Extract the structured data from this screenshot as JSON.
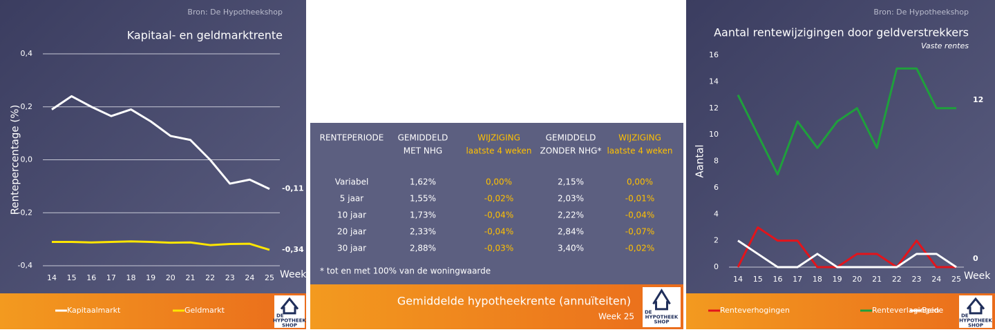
{
  "chart_data": [
    {
      "type": "line",
      "source": "Bron: De Hypotheekshop",
      "title": "Kapitaal- en geldmarktrente",
      "y_label": "Rentepercentage (%)",
      "x_label": "Week",
      "categories": [
        14,
        15,
        16,
        17,
        18,
        19,
        20,
        21,
        22,
        23,
        24,
        25
      ],
      "ylim": [
        -0.4,
        0.4
      ],
      "yticks": [
        {
          "value": -0.4,
          "label": "-0,4"
        },
        {
          "value": -0.2,
          "label": "-0,2"
        },
        {
          "value": 0,
          "label": "0,0"
        },
        {
          "value": 0.2,
          "label": "0,2"
        },
        {
          "value": 0.4,
          "label": "0,4"
        }
      ],
      "grid": true,
      "series": [
        {
          "name": "Kapitaalmarkt",
          "color": "#ffffff",
          "values": [
            0.19,
            0.24,
            0.2,
            0.165,
            0.19,
            0.145,
            0.09,
            0.075,
            0.0,
            -0.09,
            -0.075,
            -0.11
          ],
          "end_label": "-0,11"
        },
        {
          "name": "Geldmarkt",
          "color": "#ffe600",
          "values": [
            -0.31,
            -0.31,
            -0.312,
            -0.31,
            -0.308,
            -0.31,
            -0.313,
            -0.312,
            -0.322,
            -0.318,
            -0.317,
            -0.34
          ],
          "end_label": "-0,34"
        }
      ]
    },
    {
      "type": "line",
      "source": "Bron: De Hypotheekshop",
      "title": "Aantal rentewijzigingen door geldverstrekkers",
      "subtitle": "Vaste rentes",
      "y_label": "Aantal",
      "x_label": "Week",
      "categories": [
        14,
        15,
        16,
        17,
        18,
        19,
        20,
        21,
        22,
        23,
        24,
        25
      ],
      "ylim": [
        0,
        16
      ],
      "yticks": [
        0,
        2,
        4,
        6,
        8,
        10,
        12,
        14,
        16
      ],
      "grid": false,
      "series": [
        {
          "name": "Renteverhogingen",
          "color": "#e3141b",
          "values": [
            0,
            3,
            2,
            2,
            0,
            0,
            1,
            1,
            0,
            2,
            0,
            0
          ]
        },
        {
          "name": "Renteverlagingen",
          "color": "#1fa03c",
          "values": [
            13,
            10,
            7,
            11,
            9,
            11,
            12,
            9,
            15,
            15,
            12,
            12
          ],
          "end_label": "12"
        },
        {
          "name": "Beide",
          "color": "#ffffff",
          "values": [
            2,
            1,
            0,
            0,
            1,
            0,
            0,
            0,
            0,
            1,
            1,
            0
          ],
          "end_label": "0"
        }
      ]
    }
  ],
  "table": {
    "headers": [
      [
        "RENTEPERIODE"
      ],
      [
        "GEMIDDELD",
        "MET NHG"
      ],
      [
        "WIJZIGING",
        "laatste 4 weken"
      ],
      [
        "GEMIDDELD",
        "ZONDER NHG*"
      ],
      [
        "WIJZIGING",
        "laatste 4 weken"
      ]
    ],
    "rows": [
      [
        "Variabel",
        "1,62%",
        "0,00%",
        "2,15%",
        "0,00%"
      ],
      [
        "5 jaar",
        "1,55%",
        "-0,02%",
        "2,03%",
        "-0,01%"
      ],
      [
        "10 jaar",
        "1,73%",
        "-0,04%",
        "2,22%",
        "-0,04%"
      ],
      [
        "20 jaar",
        "2,33%",
        "-0,04%",
        "2,84%",
        "-0,07%"
      ],
      [
        "30 jaar",
        "2,88%",
        "-0,03%",
        "3,40%",
        "-0,02%"
      ]
    ],
    "footnote": "* tot en met 100% van de woningwaarde",
    "title": "Gemiddelde hypotheekrente (annuïteiten)",
    "subtitle": "Week 25"
  },
  "logo": {
    "lines": [
      "DE",
      "HYPOTHEEK",
      "SHOP"
    ]
  }
}
